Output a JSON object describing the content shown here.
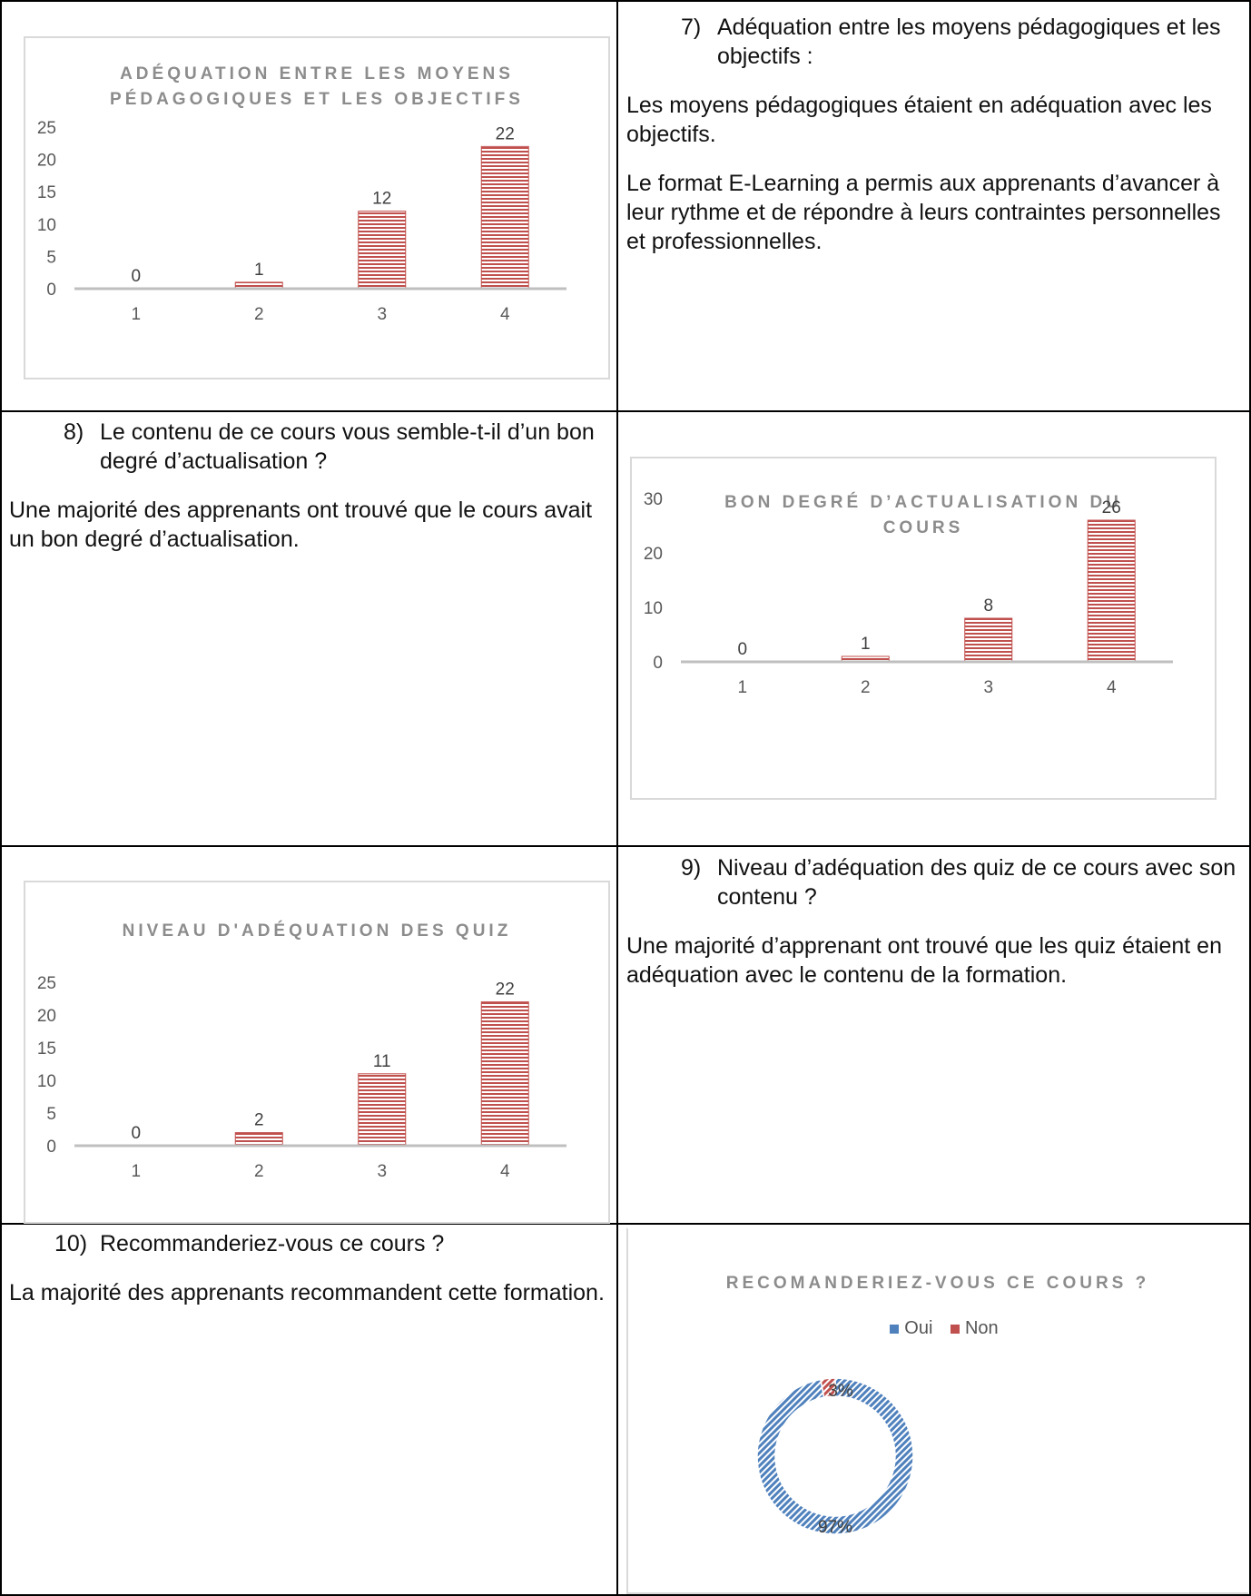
{
  "section7": {
    "number": "7)",
    "question": "Adéquation entre les moyens pédagogiques et les objectifs :",
    "paragraphs": [
      "Les moyens pédagogiques étaient en adéquation avec les objectifs.",
      "Le format E-Learning a permis aux apprenants d’avancer à leur rythme et de répondre à leurs contraintes personnelles et professionnelles."
    ]
  },
  "section8": {
    "number": "8)",
    "question": "Le contenu de ce cours vous semble-t-il d’un bon degré d’actualisation ?",
    "paragraphs": [
      "Une majorité des apprenants ont trouvé que le cours avait un bon degré d’actualisation."
    ]
  },
  "section9": {
    "number": "9)",
    "question": "Niveau d’adéquation des quiz de ce cours avec son contenu ?",
    "paragraphs": [
      "Une majorité d’apprenant ont trouvé que les quiz étaient en adéquation avec le contenu de la formation."
    ]
  },
  "section10": {
    "number": "10)",
    "question": "Recommanderiez-vous ce cours ?",
    "paragraphs": [
      "La majorité des apprenants recommandent cette formation."
    ]
  },
  "chart_data": [
    {
      "type": "bar",
      "title_lines": [
        "ADÉQUATION ENTRE LES MOYENS",
        "PÉDAGOGIQUES ET LES OBJECTIFS"
      ],
      "categories": [
        "1",
        "2",
        "3",
        "4"
      ],
      "values": [
        0,
        1,
        12,
        22
      ],
      "yticks": [
        0,
        5,
        10,
        15,
        20,
        25
      ],
      "ylim": [
        0,
        25
      ],
      "bar_color": "#c0504d",
      "grid": false
    },
    {
      "type": "bar",
      "title_lines": [
        "BON DEGRÉ D’ACTUALISATION DU",
        "COURS"
      ],
      "categories": [
        "1",
        "2",
        "3",
        "4"
      ],
      "values": [
        0,
        1,
        8,
        26
      ],
      "yticks": [
        0,
        10,
        20,
        30
      ],
      "ylim": [
        0,
        30
      ],
      "bar_color": "#c0504d",
      "grid": false
    },
    {
      "type": "bar",
      "title_lines": [
        "NIVEAU D'ADÉQUATION DES QUIZ"
      ],
      "categories": [
        "1",
        "2",
        "3",
        "4"
      ],
      "values": [
        0,
        2,
        11,
        22
      ],
      "yticks": [
        0,
        5,
        10,
        15,
        20,
        25
      ],
      "ylim": [
        0,
        25
      ],
      "bar_color": "#c0504d",
      "grid": false
    },
    {
      "type": "pie",
      "variant": "doughnut",
      "title_lines": [
        "RECOMANDERIEZ-VOUS CE COURS ?"
      ],
      "categories": [
        "Oui",
        "Non"
      ],
      "values": [
        97,
        3
      ],
      "labels": [
        "97%",
        "3%"
      ],
      "colors": [
        "#4f81bd",
        "#c0504d"
      ],
      "legend_position": "top"
    }
  ]
}
